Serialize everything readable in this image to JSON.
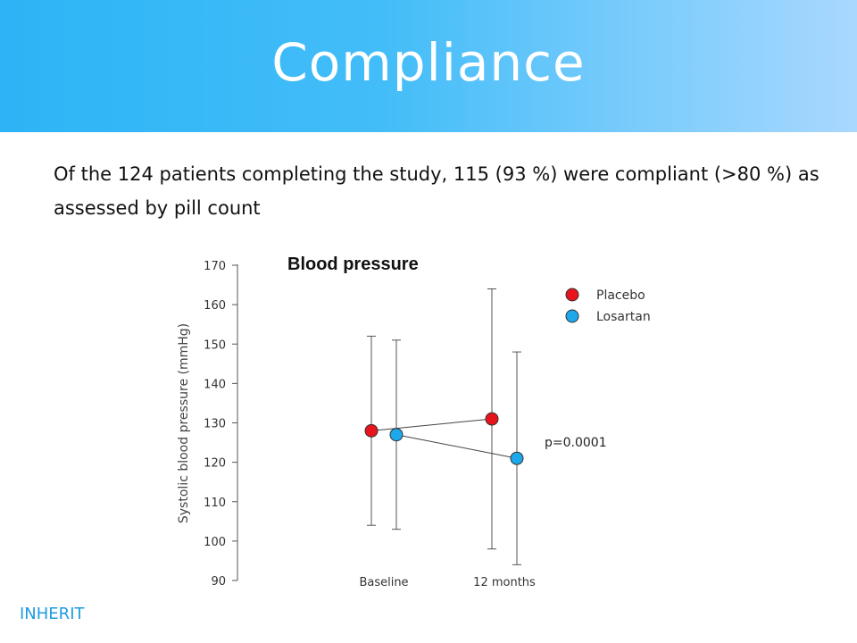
{
  "slide": {
    "title": "Compliance",
    "body": "Of the 124 patients completing the study, 115 (93 %) were compliant (>80 %) as assessed by pill count",
    "footer": "INHERIT"
  },
  "colors": {
    "placebo": "#e8141b",
    "losartan": "#1ca8ea",
    "footer": "#1e9be0"
  },
  "chart_data": {
    "type": "line",
    "title": "Blood pressure",
    "ylabel": "Systolic blood pressure (mmHg)",
    "xlabel": "",
    "categories": [
      "Baseline",
      "12 months"
    ],
    "ylim": [
      90,
      170
    ],
    "yticks": [
      90,
      100,
      110,
      120,
      130,
      140,
      150,
      160,
      170
    ],
    "grid": false,
    "legend_position": "top-right",
    "series": [
      {
        "name": "Placebo",
        "values": [
          128,
          131
        ],
        "error_low": [
          104,
          98
        ],
        "error_high": [
          152,
          164
        ]
      },
      {
        "name": "Losartan",
        "values": [
          127,
          121
        ],
        "error_low": [
          103,
          94
        ],
        "error_high": [
          151,
          148
        ]
      }
    ],
    "annotation": "p=0.0001"
  }
}
